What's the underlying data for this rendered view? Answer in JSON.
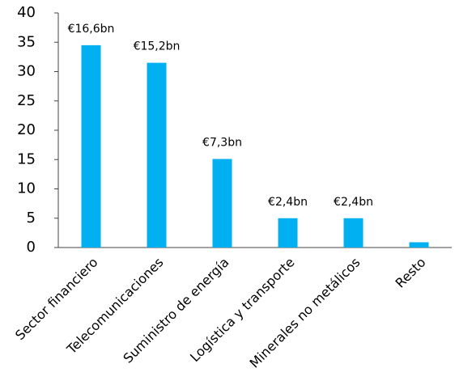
{
  "chart_data": {
    "type": "bar",
    "categories": [
      "Sector financiero",
      "Telecomunicaciones",
      "Suministro de energía",
      "Logística y transporte",
      "Minerales no metálicos",
      "Resto"
    ],
    "values": [
      34.5,
      31.5,
      15.1,
      5,
      5,
      0.9
    ],
    "annotations": [
      "€16,6bn",
      "€15,2bn",
      "€7,3bn",
      "€2,4bn",
      "€2,4bn",
      null
    ],
    "color": "#00b0f0",
    "ylim": [
      0,
      40
    ],
    "yticks": [
      0,
      5,
      10,
      15,
      20,
      25,
      30,
      35,
      40
    ],
    "grid": false
  }
}
